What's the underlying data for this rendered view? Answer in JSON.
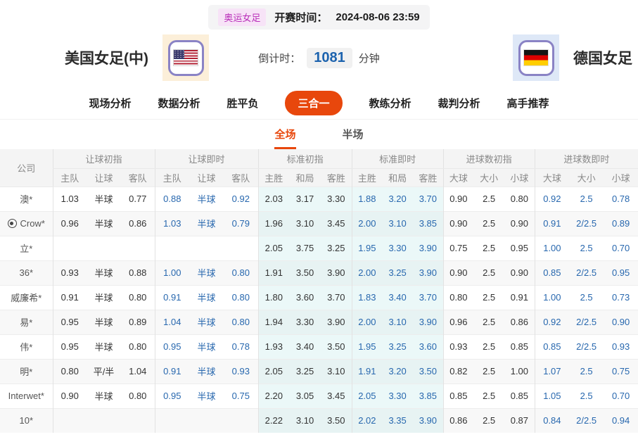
{
  "header": {
    "match_tag": "奥运女足",
    "kickoff_label": "开赛时间：",
    "kickoff_time": "2024-08-06 23:59"
  },
  "match": {
    "home_name": "美国女足(中)",
    "away_name": "德国女足",
    "countdown_label": "倒计时：",
    "countdown_value": "1081",
    "countdown_unit": "分钟"
  },
  "nav_tabs": [
    {
      "label": "现场分析",
      "active": false
    },
    {
      "label": "数据分析",
      "active": false
    },
    {
      "label": "胜平负",
      "active": false
    },
    {
      "label": "三合一",
      "active": true
    },
    {
      "label": "教练分析",
      "active": false
    },
    {
      "label": "裁判分析",
      "active": false
    },
    {
      "label": "高手推荐",
      "active": false
    }
  ],
  "sub_tabs": [
    {
      "label": "全场",
      "active": true
    },
    {
      "label": "半场",
      "active": false
    }
  ],
  "odds_table": {
    "company_header": "公司",
    "groups": [
      {
        "label": "让球初指",
        "cols": [
          "主队",
          "让球",
          "客队"
        ]
      },
      {
        "label": "让球即时",
        "cols": [
          "主队",
          "让球",
          "客队"
        ]
      },
      {
        "label": "标准初指",
        "cols": [
          "主胜",
          "和局",
          "客胜"
        ]
      },
      {
        "label": "标准即时",
        "cols": [
          "主胜",
          "和局",
          "客胜"
        ]
      },
      {
        "label": "进球数初指",
        "cols": [
          "大球",
          "大小",
          "小球"
        ]
      },
      {
        "label": "进球数即时",
        "cols": [
          "大球",
          "大小",
          "小球"
        ]
      }
    ],
    "rows": [
      {
        "company": "澳*",
        "icon": null,
        "cells": [
          "1.03",
          "半球",
          "0.77",
          "0.88",
          "半球",
          "0.92",
          "2.03",
          "3.17",
          "3.30",
          "1.88",
          "3.20",
          "3.70",
          "0.90",
          "2.5",
          "0.80",
          "0.92",
          "2.5",
          "0.78"
        ]
      },
      {
        "company": "Crow*",
        "icon": "soccer-ball-icon",
        "cells": [
          "0.96",
          "半球",
          "0.86",
          "1.03",
          "半球",
          "0.79",
          "1.96",
          "3.10",
          "3.45",
          "2.00",
          "3.10",
          "3.85",
          "0.90",
          "2.5",
          "0.90",
          "0.91",
          "2/2.5",
          "0.89"
        ]
      },
      {
        "company": "立*",
        "icon": null,
        "cells": [
          "",
          "",
          "",
          "",
          "",
          "",
          "2.05",
          "3.75",
          "3.25",
          "1.95",
          "3.30",
          "3.90",
          "0.75",
          "2.5",
          "0.95",
          "1.00",
          "2.5",
          "0.70"
        ]
      },
      {
        "company": "36*",
        "icon": null,
        "cells": [
          "0.93",
          "半球",
          "0.88",
          "1.00",
          "半球",
          "0.80",
          "1.91",
          "3.50",
          "3.90",
          "2.00",
          "3.25",
          "3.90",
          "0.90",
          "2.5",
          "0.90",
          "0.85",
          "2/2.5",
          "0.95"
        ]
      },
      {
        "company": "威廉希*",
        "icon": null,
        "cells": [
          "0.91",
          "半球",
          "0.80",
          "0.91",
          "半球",
          "0.80",
          "1.80",
          "3.60",
          "3.70",
          "1.83",
          "3.40",
          "3.70",
          "0.80",
          "2.5",
          "0.91",
          "1.00",
          "2.5",
          "0.73"
        ]
      },
      {
        "company": "易*",
        "icon": null,
        "cells": [
          "0.95",
          "半球",
          "0.89",
          "1.04",
          "半球",
          "0.80",
          "1.94",
          "3.30",
          "3.90",
          "2.00",
          "3.10",
          "3.90",
          "0.96",
          "2.5",
          "0.86",
          "0.92",
          "2/2.5",
          "0.90"
        ]
      },
      {
        "company": "伟*",
        "icon": null,
        "cells": [
          "0.95",
          "半球",
          "0.80",
          "0.95",
          "半球",
          "0.78",
          "1.93",
          "3.40",
          "3.50",
          "1.95",
          "3.25",
          "3.60",
          "0.93",
          "2.5",
          "0.85",
          "0.85",
          "2/2.5",
          "0.93"
        ]
      },
      {
        "company": "明*",
        "icon": null,
        "cells": [
          "0.80",
          "平/半",
          "1.04",
          "0.91",
          "半球",
          "0.93",
          "2.05",
          "3.25",
          "3.10",
          "1.91",
          "3.20",
          "3.50",
          "0.82",
          "2.5",
          "1.00",
          "1.07",
          "2.5",
          "0.75"
        ]
      },
      {
        "company": "Interwet*",
        "icon": null,
        "cells": [
          "0.90",
          "半球",
          "0.80",
          "0.95",
          "半球",
          "0.75",
          "2.20",
          "3.05",
          "3.45",
          "2.05",
          "3.30",
          "3.85",
          "0.85",
          "2.5",
          "0.85",
          "1.05",
          "2.5",
          "0.70"
        ]
      },
      {
        "company": "10*",
        "icon": null,
        "cells": [
          "",
          "",
          "",
          "",
          "",
          "",
          "2.22",
          "3.10",
          "3.50",
          "2.02",
          "3.35",
          "3.90",
          "0.86",
          "2.5",
          "0.87",
          "0.84",
          "2/2.5",
          "0.94"
        ]
      }
    ]
  },
  "colors": {
    "accent_orange": "#e8470c",
    "live_blue": "#2767ae",
    "standard_col_bg": "#ebf8f8",
    "tag_magenta": "#b92fb9",
    "countdown_blue": "#1d63ae"
  }
}
